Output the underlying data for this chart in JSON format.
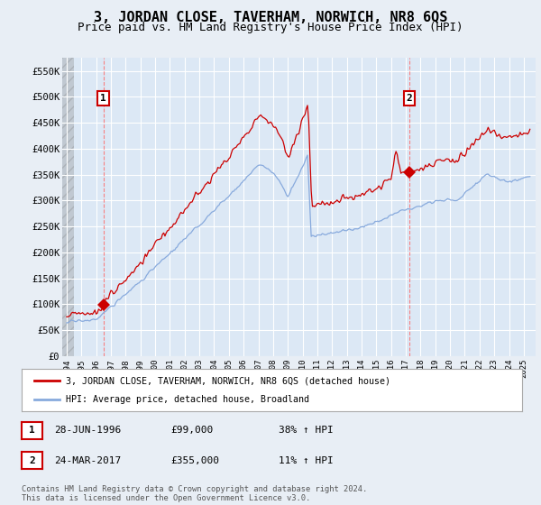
{
  "title": "3, JORDAN CLOSE, TAVERHAM, NORWICH, NR8 6QS",
  "subtitle": "Price paid vs. HM Land Registry's House Price Index (HPI)",
  "title_fontsize": 11,
  "subtitle_fontsize": 9,
  "ylabel_ticks": [
    "£0",
    "£50K",
    "£100K",
    "£150K",
    "£200K",
    "£250K",
    "£300K",
    "£350K",
    "£400K",
    "£450K",
    "£500K",
    "£550K"
  ],
  "ytick_values": [
    0,
    50000,
    100000,
    150000,
    200000,
    250000,
    300000,
    350000,
    400000,
    450000,
    500000,
    550000
  ],
  "ylim": [
    0,
    575000
  ],
  "xlim_start": 1993.7,
  "xlim_end": 2025.8,
  "xtick_years": [
    1994,
    1995,
    1996,
    1997,
    1998,
    1999,
    2000,
    2001,
    2002,
    2003,
    2004,
    2005,
    2006,
    2007,
    2008,
    2009,
    2010,
    2011,
    2012,
    2013,
    2014,
    2015,
    2016,
    2017,
    2018,
    2019,
    2020,
    2021,
    2022,
    2023,
    2024,
    2025
  ],
  "sale1_year": 1996.49,
  "sale1_price": 99000,
  "sale1_label": "1",
  "sale1_date": "28-JUN-1996",
  "sale1_pct": "38% ↑ HPI",
  "sale2_year": 2017.23,
  "sale2_price": 355000,
  "sale2_label": "2",
  "sale2_date": "24-MAR-2017",
  "sale2_pct": "11% ↑ HPI",
  "property_line_color": "#cc0000",
  "hpi_line_color": "#88aadd",
  "background_color": "#e8eef5",
  "plot_bg_color": "#dce8f5",
  "grid_color": "#ffffff",
  "legend_property": "3, JORDAN CLOSE, TAVERHAM, NORWICH, NR8 6QS (detached house)",
  "legend_hpi": "HPI: Average price, detached house, Broadland",
  "footnote": "Contains HM Land Registry data © Crown copyright and database right 2024.\nThis data is licensed under the Open Government Licence v3.0.",
  "annotation1_box_color": "#cc0000",
  "annotation2_box_color": "#cc0000"
}
